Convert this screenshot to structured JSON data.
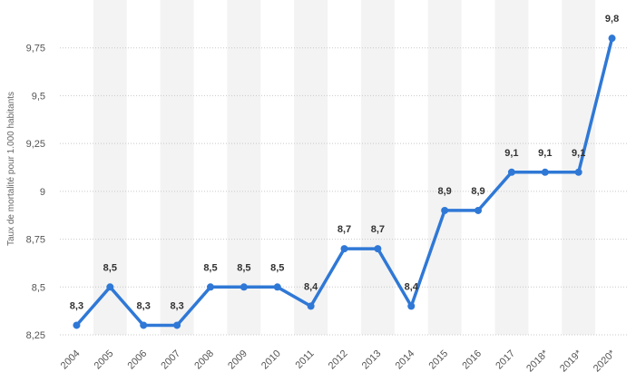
{
  "chart_data": {
    "type": "line",
    "ylabel": "Taux de mortalité pour 1.000 habitants",
    "xlabel": "",
    "categories": [
      "2004",
      "2005",
      "2006",
      "2007",
      "2008",
      "2009",
      "2010",
      "2011",
      "2012",
      "2013",
      "2014",
      "2015",
      "2016",
      "2017",
      "2018*",
      "2019*",
      "2020*"
    ],
    "series": [
      {
        "values": [
          8.3,
          8.5,
          8.3,
          8.3,
          8.5,
          8.5,
          8.5,
          8.4,
          8.7,
          8.7,
          8.4,
          8.9,
          8.9,
          9.1,
          9.1,
          9.1,
          9.8
        ]
      }
    ],
    "data_labels": [
      "8,3",
      "8,5",
      "8,3",
      "8,3",
      "8,5",
      "8,5",
      "8,5",
      "8,4",
      "8,7",
      "8,7",
      "8,4",
      "8,9",
      "8,9",
      "9,1",
      "9,1",
      "9,1",
      "9,8"
    ],
    "yticks": [
      8.25,
      8.5,
      8.75,
      9,
      9.25,
      9.5,
      9.75
    ],
    "ytick_labels": [
      "8,25",
      "8,5",
      "8,75",
      "9",
      "9,25",
      "9,5",
      "9,75"
    ],
    "ylim": [
      8.25,
      10.0
    ],
    "line_color": "#2f78d6",
    "grid": true,
    "legend": "none"
  }
}
